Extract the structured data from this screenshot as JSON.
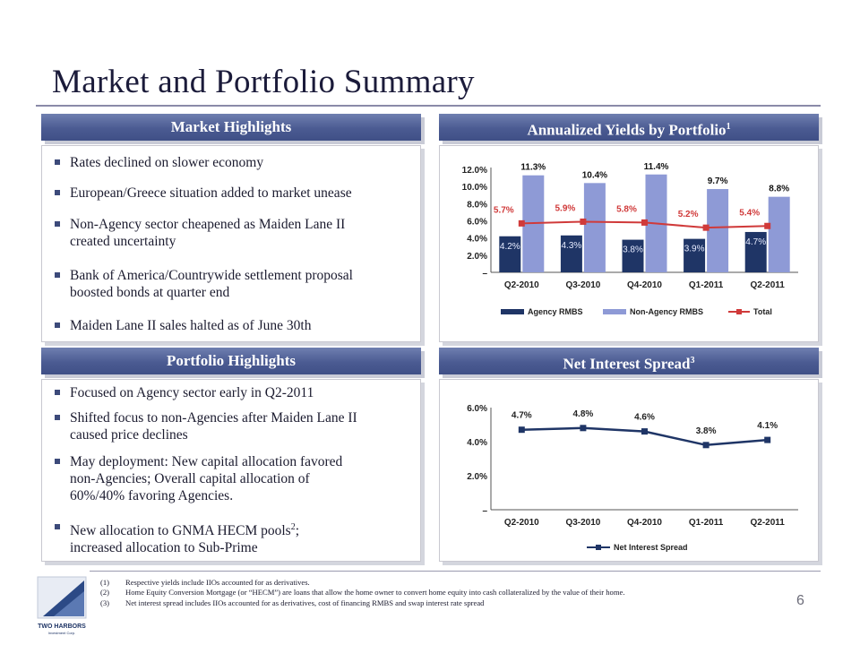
{
  "title": "Market and Portfolio Summary",
  "market": {
    "header": "Market Highlights",
    "bullets": [
      [
        "Rates declined on slower economy"
      ],
      [
        "European/Greece situation added to market unease"
      ],
      [
        "Non-Agency sector cheapened as Maiden Lane II",
        "created uncertainty"
      ],
      [
        "Bank of America/Countrywide settlement proposal",
        "boosted bonds at quarter end"
      ],
      [
        "Maiden Lane II sales halted as of June 30th"
      ]
    ]
  },
  "portfolio": {
    "header": "Portfolio Highlights",
    "bullets": [
      [
        "Focused on Agency sector early in Q2-2011"
      ],
      [
        "Shifted focus to non-Agencies after Maiden Lane II",
        "caused price declines"
      ],
      [
        "May deployment:  New capital allocation favored",
        "non-Agencies; Overall capital allocation of",
        "60%/40% favoring Agencies."
      ],
      [
        "New allocation to GNMA HECM pools",
        "increased allocation to Sub-Prime"
      ]
    ],
    "bullet4_sup": "2",
    "bullet4_tail": ";"
  },
  "yields": {
    "header": "Annualized Yields by Portfolio",
    "header_sup": "1"
  },
  "spread": {
    "header": "Net Interest Spread",
    "header_sup": "3"
  },
  "chart_data": [
    {
      "type": "bar",
      "title": "Annualized Yields by Portfolio",
      "categories": [
        "Q2-2010",
        "Q3-2010",
        "Q4-2010",
        "Q1-2011",
        "Q2-2011"
      ],
      "series": [
        {
          "name": "Agency RMBS",
          "type": "bar",
          "color": "#1f3566",
          "values": [
            4.2,
            4.3,
            3.8,
            3.9,
            4.7
          ],
          "labels": [
            "4.2%",
            "4.3%",
            "3.8%",
            "3.9%",
            "4.7%"
          ]
        },
        {
          "name": "Non-Agency RMBS",
          "type": "bar",
          "color": "#8e9ad6",
          "values": [
            11.3,
            10.4,
            11.4,
            9.7,
            8.8
          ],
          "labels": [
            "11.3%",
            "10.4%",
            "11.4%",
            "9.7%",
            "8.8%"
          ]
        },
        {
          "name": "Total",
          "type": "line",
          "color": "#d03a3a",
          "values": [
            5.7,
            5.9,
            5.8,
            5.2,
            5.4
          ],
          "labels": [
            "5.7%",
            "5.9%",
            "5.8%",
            "5.2%",
            "5.4%"
          ]
        }
      ],
      "yticks": [
        "12.0%",
        "10.0%",
        "8.0%",
        "6.0%",
        "4.0%",
        "2.0%",
        "–"
      ],
      "ylim": [
        0,
        12
      ],
      "legend": "bottom"
    },
    {
      "type": "line",
      "title": "Net Interest Spread",
      "categories": [
        "Q2-2010",
        "Q3-2010",
        "Q4-2010",
        "Q1-2011",
        "Q2-2011"
      ],
      "series": [
        {
          "name": "Net Interest Spread",
          "color": "#1f3566",
          "values": [
            4.7,
            4.8,
            4.6,
            3.8,
            4.1
          ],
          "labels": [
            "4.7%",
            "4.8%",
            "4.6%",
            "3.8%",
            "4.1%"
          ]
        }
      ],
      "yticks": [
        "6.0%",
        "4.0%",
        "2.0%",
        "–"
      ],
      "ylim": [
        0,
        6
      ],
      "legend": "bottom"
    }
  ],
  "footnotes": [
    {
      "num": "(1)",
      "text": "Respective yields include IIOs accounted for as derivatives."
    },
    {
      "num": "(2)",
      "text": "Home Equity Conversion Mortgage (or “HECM”) are loans that allow the home owner to convert home equity into cash collateralized by the value of their home."
    },
    {
      "num": "(3)",
      "text": "Net interest spread includes IIOs accounted for as derivatives, cost of financing RMBS and swap interest rate spread"
    }
  ],
  "logo": {
    "text": "TWO HARBORS",
    "subtext": "Investment Corp."
  },
  "page_number": "6"
}
